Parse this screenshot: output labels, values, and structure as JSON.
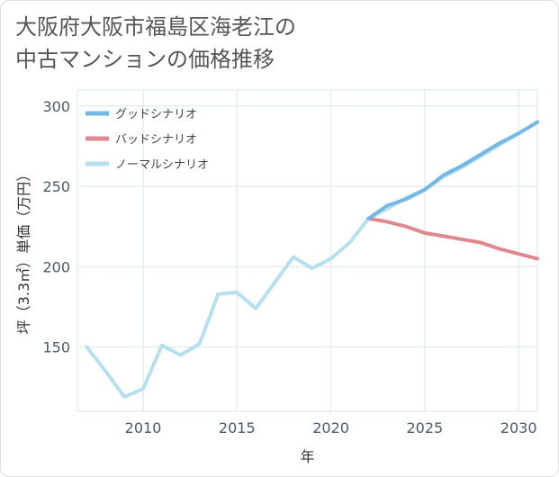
{
  "title": {
    "line1": "大阪府大阪市福島区海老江の",
    "line2": "中古マンションの価格推移"
  },
  "chart_data": {
    "type": "line",
    "title": "大阪府大阪市福島区海老江の中古マンションの価格推移",
    "xlabel": "年",
    "ylabel": "坪（3.3㎡）単価（万円）",
    "xlim": [
      2006.5,
      2031
    ],
    "ylim": [
      110,
      310
    ],
    "xticks": [
      2010,
      2015,
      2020,
      2025,
      2030
    ],
    "yticks": [
      150,
      200,
      250,
      300
    ],
    "xtick_labels": [
      "2010",
      "2015",
      "2020",
      "2025",
      "2030"
    ],
    "ytick_labels": [
      "150",
      "200",
      "250",
      "300"
    ],
    "grid": true,
    "legend_position": "top-left",
    "series": [
      {
        "name": "グッドシナリオ",
        "color": "#74b9e6",
        "x": [
          2022,
          2023,
          2024,
          2025,
          2026,
          2027,
          2028,
          2029,
          2030,
          2031
        ],
        "values": [
          230,
          238,
          242,
          248,
          257,
          263,
          270,
          277,
          283,
          290
        ]
      },
      {
        "name": "バッドシナリオ",
        "color": "#e08890",
        "x": [
          2022,
          2023,
          2024,
          2025,
          2026,
          2027,
          2028,
          2029,
          2030,
          2031
        ],
        "values": [
          230,
          228,
          225,
          221,
          219,
          217,
          215,
          211,
          208,
          205
        ]
      },
      {
        "name": "ノーマルシナリオ",
        "color": "#b6dff0",
        "x": [
          2007,
          2008,
          2009,
          2010,
          2011,
          2012,
          2013,
          2014,
          2015,
          2016,
          2017,
          2018,
          2019,
          2020,
          2021,
          2022,
          2023,
          2024,
          2025,
          2026,
          2027,
          2028,
          2029,
          2030,
          2031
        ],
        "values": [
          150,
          135,
          119,
          124,
          151,
          145,
          152,
          183,
          184,
          174,
          190,
          206,
          199,
          205,
          215,
          230,
          236,
          243,
          248,
          256,
          262,
          269,
          276,
          283,
          290
        ]
      }
    ]
  }
}
